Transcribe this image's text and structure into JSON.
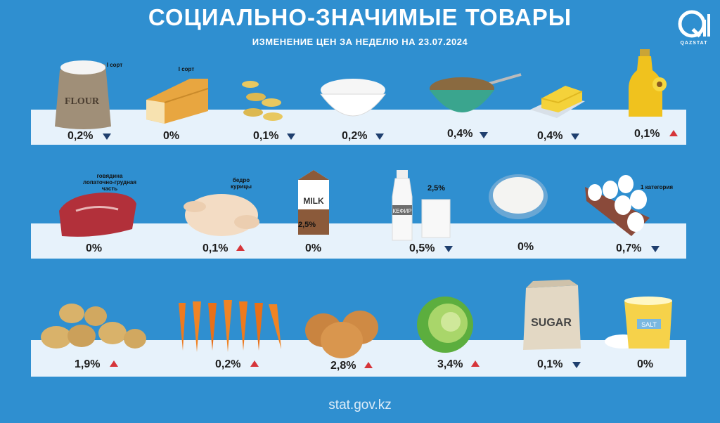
{
  "title": "СОЦИАЛЬНО-ЗНАЧИМЫЕ ТОВАРЫ",
  "subtitle": "ИЗМЕНЕНИЕ ЦЕН ЗА НЕДЕЛЮ НА 23.07.2024",
  "logo_text": "QAZSTAT",
  "footer": "stat.gov.kz",
  "colors": {
    "background": "#2f8fd0",
    "shelf": "#e7f2fb",
    "down": "#1f3f6e",
    "up": "#d6353a"
  },
  "items": {
    "flour": {
      "change": "0,2%",
      "direction": "down",
      "note": "I сорт",
      "label": "FLOUR",
      "icon": "flour-sack-icon"
    },
    "bread": {
      "change": "0%",
      "direction": "none",
      "note": "I сорт",
      "icon": "bread-icon"
    },
    "pasta": {
      "change": "0,1%",
      "direction": "down",
      "icon": "pasta-icon"
    },
    "rice": {
      "change": "0,2%",
      "direction": "down",
      "icon": "rice-bowl-icon"
    },
    "buckwheat": {
      "change": "0,4%",
      "direction": "down",
      "icon": "buckwheat-bowl-icon"
    },
    "butter": {
      "change": "0,4%",
      "direction": "down",
      "icon": "butter-icon"
    },
    "oil": {
      "change": "0,1%",
      "direction": "up",
      "icon": "oil-bottle-icon"
    },
    "beef": {
      "change": "0%",
      "direction": "none",
      "note": "говядина лопаточно-грудная часть",
      "icon": "beef-icon"
    },
    "chicken": {
      "change": "0,1%",
      "direction": "up",
      "note": "бедро курицы",
      "icon": "chicken-icon"
    },
    "milk": {
      "change": "0%",
      "direction": "none",
      "label": "MILK",
      "fat": "2,5%",
      "icon": "milk-carton-icon"
    },
    "kefir": {
      "change": "0,5%",
      "direction": "down",
      "label": "КЕФИР",
      "fat": "2,5%",
      "icon": "kefir-bottle-icon"
    },
    "cottage": {
      "change": "0%",
      "direction": "none",
      "icon": "cottage-cheese-icon"
    },
    "eggs": {
      "change": "0,7%",
      "direction": "down",
      "note": "1 категория",
      "icon": "eggs-icon"
    },
    "potato": {
      "change": "1,9%",
      "direction": "up",
      "icon": "potato-icon"
    },
    "carrot": {
      "change": "0,2%",
      "direction": "up",
      "icon": "carrot-icon"
    },
    "onion": {
      "change": "2,8%",
      "direction": "up",
      "icon": "onion-icon"
    },
    "cabbage": {
      "change": "3,4%",
      "direction": "up",
      "icon": "cabbage-icon"
    },
    "sugar": {
      "change": "0,1%",
      "direction": "down",
      "label": "SUGAR",
      "icon": "sugar-bag-icon"
    },
    "salt": {
      "change": "0%",
      "direction": "none",
      "label": "SALT",
      "icon": "salt-cup-icon"
    }
  }
}
